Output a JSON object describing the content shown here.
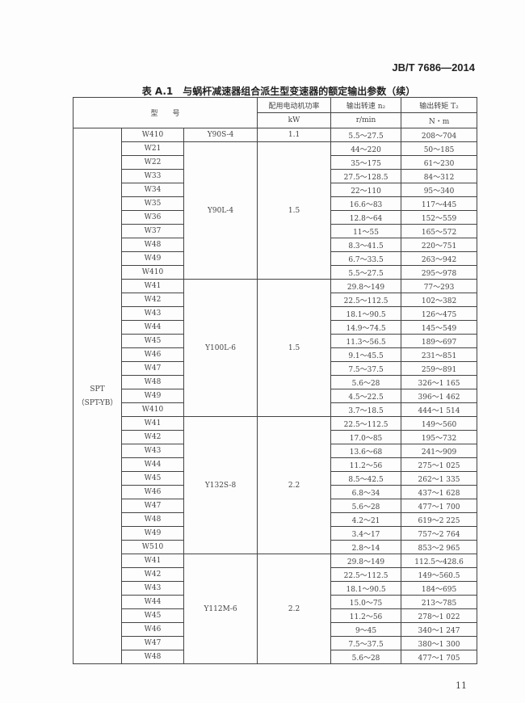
{
  "standard_code": "JB/T 7686—2014",
  "table_title": "表 A.1　与蜗杆减速器组合派生型变速器的额定输出参数（续）",
  "headers": {
    "model": "型　　号",
    "power": "配用电动机功率",
    "power_unit": "kW",
    "speed": "输出转速 n₂",
    "speed_unit": "r/min",
    "torque": "输出转矩 T₂",
    "torque_unit": "N・m"
  },
  "series": "SPT",
  "series_sub": "（SPT-YB）",
  "groups": [
    {
      "motor": "Y90S-4",
      "power": "1.1",
      "rows": [
        [
          "W410",
          "5.5～27.5",
          "208～704"
        ]
      ]
    },
    {
      "motor": "Y90L-4",
      "power": "1.5",
      "rows": [
        [
          "W21",
          "44～220",
          "50～185"
        ],
        [
          "W22",
          "35～175",
          "61～230"
        ],
        [
          "W33",
          "27.5～128.5",
          "84～312"
        ],
        [
          "W34",
          "22～110",
          "95～340"
        ],
        [
          "W35",
          "16.6～83",
          "117～445"
        ],
        [
          "W36",
          "12.8～64",
          "152～559"
        ],
        [
          "W37",
          "11～55",
          "165～572"
        ],
        [
          "W48",
          "8.3～41.5",
          "220～751"
        ],
        [
          "W49",
          "6.7～33.5",
          "263～942"
        ],
        [
          "W410",
          "5.5～27.5",
          "295～978"
        ]
      ]
    },
    {
      "motor": "Y100L-6",
      "power": "1.5",
      "rows": [
        [
          "W41",
          "29.8～149",
          "77～293"
        ],
        [
          "W42",
          "22.5～112.5",
          "102～382"
        ],
        [
          "W43",
          "18.1～90.5",
          "126～475"
        ],
        [
          "W44",
          "14.9～74.5",
          "145～549"
        ],
        [
          "W45",
          "11.3～56.5",
          "189～697"
        ],
        [
          "W46",
          "9.1～45.5",
          "231～851"
        ],
        [
          "W47",
          "7.5～37.5",
          "259～891"
        ],
        [
          "W48",
          "5.6～28",
          "326～1 165"
        ],
        [
          "W49",
          "4.5～22.5",
          "396～1 462"
        ],
        [
          "W410",
          "3.7～18.5",
          "444～1 514"
        ]
      ]
    },
    {
      "motor": "Y132S-8",
      "power": "2.2",
      "rows": [
        [
          "W41",
          "22.5～112.5",
          "149～560"
        ],
        [
          "W42",
          "17.0～85",
          "195～732"
        ],
        [
          "W43",
          "13.6～68",
          "241～909"
        ],
        [
          "W44",
          "11.2～56",
          "275～1 025"
        ],
        [
          "W45",
          "8.5～42.5",
          "262～1 335"
        ],
        [
          "W46",
          "6.8～34",
          "437～1 628"
        ],
        [
          "W47",
          "5.6～28",
          "477～1 700"
        ],
        [
          "W48",
          "4.2～21",
          "619～2 225"
        ],
        [
          "W49",
          "3.4～17",
          "757～2 764"
        ],
        [
          "W510",
          "2.8～14",
          "853～2 965"
        ]
      ]
    },
    {
      "motor": "Y112M-6",
      "power": "2.2",
      "rows": [
        [
          "W41",
          "29.8～149",
          "112.5～428.6"
        ],
        [
          "W42",
          "22.5～112.5",
          "149～560.5"
        ],
        [
          "W43",
          "18.1～90.5",
          "184～695"
        ],
        [
          "W44",
          "15.0～75",
          "213～785"
        ],
        [
          "W45",
          "11.2～56",
          "278～1 022"
        ],
        [
          "W46",
          "9～45",
          "340～1 247"
        ],
        [
          "W47",
          "7.5～37.5",
          "380～1 300"
        ],
        [
          "W48",
          "5.6～28",
          "477～1 705"
        ]
      ]
    }
  ],
  "page_number": "11"
}
